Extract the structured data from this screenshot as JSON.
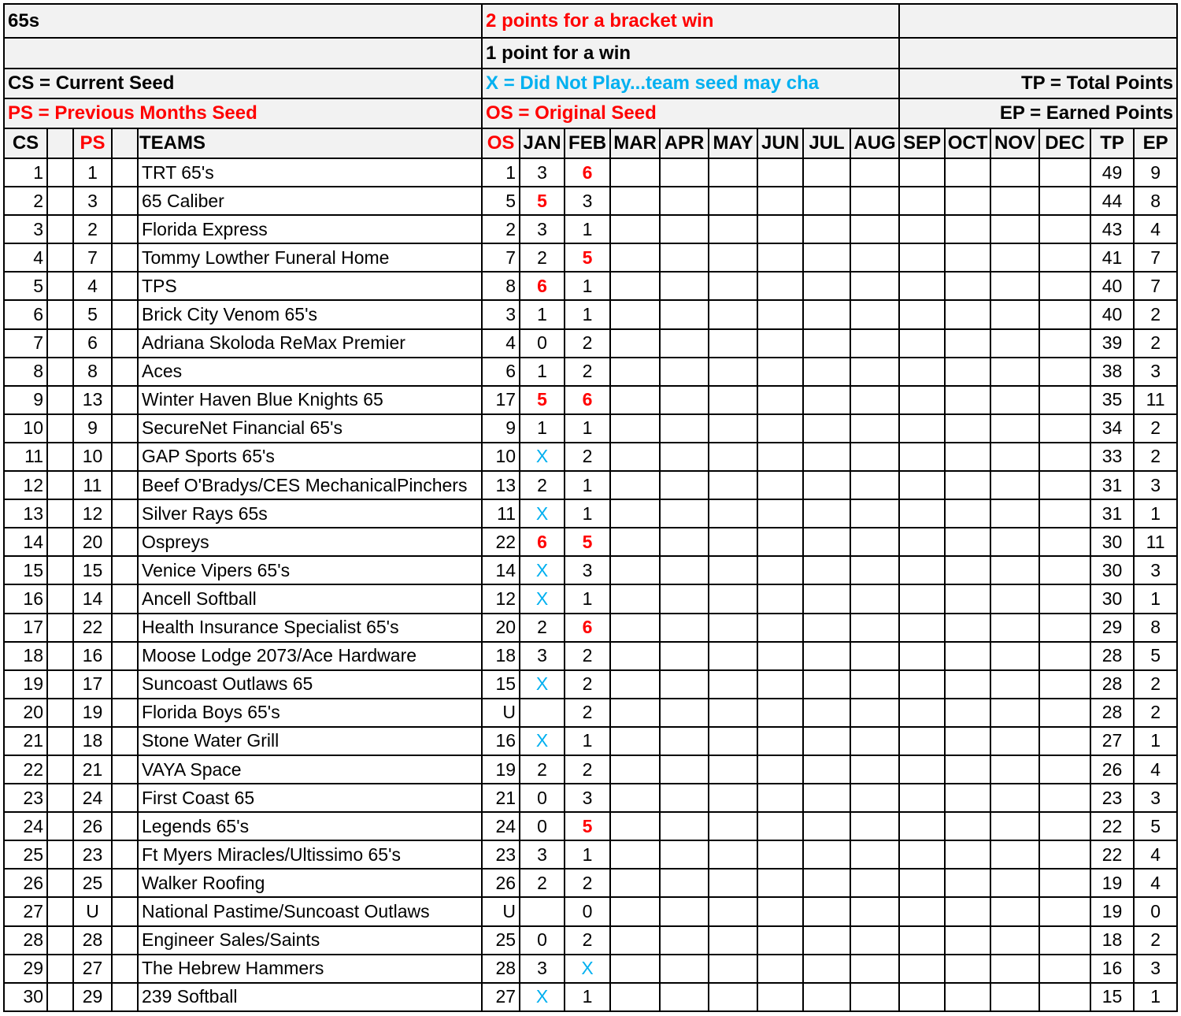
{
  "title": "65s",
  "legend": {
    "bracket_win": "2 points for a bracket win",
    "win": "1 point for a win",
    "cs": "CS = Current Seed",
    "x": "X = Did Not Play...team seed may cha",
    "ps": "PS = Previous Months Seed",
    "os": "OS = Original Seed",
    "tp": "TP = Total Points",
    "ep": "EP = Earned Points"
  },
  "columns": [
    "CS",
    "",
    "PS",
    "",
    "TEAMS",
    "OS",
    "JAN",
    "FEB",
    "MAR",
    "APR",
    "MAY",
    "JUN",
    "JUL",
    "AUG",
    "SEP",
    "OCT",
    "NOV",
    "DEC",
    "TP",
    "EP"
  ],
  "colors": {
    "red": "#ff0000",
    "blue": "#00b0f0",
    "header_bg": "#f2f2f2"
  },
  "rows": [
    [
      "1",
      "1",
      "TRT 65's",
      "1",
      "3",
      "6",
      "49",
      "9"
    ],
    [
      "2",
      "3",
      "65 Caliber",
      "5",
      "5",
      "3",
      "44",
      "8"
    ],
    [
      "3",
      "2",
      "Florida Express",
      "2",
      "3",
      "1",
      "43",
      "4"
    ],
    [
      "4",
      "7",
      "Tommy Lowther Funeral Home",
      "7",
      "2",
      "5",
      "41",
      "7"
    ],
    [
      "5",
      "4",
      "TPS",
      "8",
      "6",
      "1",
      "40",
      "7"
    ],
    [
      "6",
      "5",
      "Brick City Venom 65's",
      "3",
      "1",
      "1",
      "40",
      "2"
    ],
    [
      "7",
      "6",
      "Adriana Skoloda ReMax Premier",
      "4",
      "0",
      "2",
      "39",
      "2"
    ],
    [
      "8",
      "8",
      "Aces",
      "6",
      "1",
      "2",
      "38",
      "3"
    ],
    [
      "9",
      "13",
      "Winter Haven Blue Knights 65",
      "17",
      "5",
      "6",
      "35",
      "11"
    ],
    [
      "10",
      "9",
      "SecureNet Financial 65's",
      "9",
      "1",
      "1",
      "34",
      "2"
    ],
    [
      "11",
      "10",
      "GAP Sports 65's",
      "10",
      "X",
      "2",
      "33",
      "2"
    ],
    [
      "12",
      "11",
      "Beef O'Bradys/CES MechanicalPinchers",
      "13",
      "2",
      "1",
      "31",
      "3"
    ],
    [
      "13",
      "12",
      "Silver Rays 65s",
      "11",
      "X",
      "1",
      "31",
      "1"
    ],
    [
      "14",
      "20",
      "Ospreys",
      "22",
      "6",
      "5",
      "30",
      "11"
    ],
    [
      "15",
      "15",
      "Venice Vipers 65's",
      "14",
      "X",
      "3",
      "30",
      "3"
    ],
    [
      "16",
      "14",
      "Ancell Softball",
      "12",
      "X",
      "1",
      "30",
      "1"
    ],
    [
      "17",
      "22",
      "Health Insurance Specialist 65's",
      "20",
      "2",
      "6",
      "29",
      "8"
    ],
    [
      "18",
      "16",
      "Moose Lodge 2073/Ace Hardware",
      "18",
      "3",
      "2",
      "28",
      "5"
    ],
    [
      "19",
      "17",
      "Suncoast Outlaws 65",
      "15",
      "X",
      "2",
      "28",
      "2"
    ],
    [
      "20",
      "19",
      "Florida Boys 65's",
      "U",
      "",
      "2",
      "28",
      "2"
    ],
    [
      "21",
      "18",
      "Stone Water Grill",
      "16",
      "X",
      "1",
      "27",
      "1"
    ],
    [
      "22",
      "21",
      "VAYA Space",
      "19",
      "2",
      "2",
      "26",
      "4"
    ],
    [
      "23",
      "24",
      "First Coast 65",
      "21",
      "0",
      "3",
      "23",
      "3"
    ],
    [
      "24",
      "26",
      "Legends 65's",
      "24",
      "0",
      "5",
      "22",
      "5"
    ],
    [
      "25",
      "23",
      "Ft Myers Miracles/Ultissimo 65's",
      "23",
      "3",
      "1",
      "22",
      "4"
    ],
    [
      "26",
      "25",
      "Walker Roofing",
      "26",
      "2",
      "2",
      "19",
      "4"
    ],
    [
      "27",
      "U",
      "National Pastime/Suncoast Outlaws",
      "U",
      "",
      "0",
      "19",
      "0"
    ],
    [
      "28",
      "28",
      "Engineer Sales/Saints",
      "25",
      "0",
      "2",
      "18",
      "2"
    ],
    [
      "29",
      "27",
      "The Hebrew Hammers",
      "28",
      "3",
      "X",
      "16",
      "3"
    ],
    [
      "30",
      "29",
      "239 Softball",
      "27",
      "X",
      "1",
      "15",
      "1"
    ]
  ]
}
